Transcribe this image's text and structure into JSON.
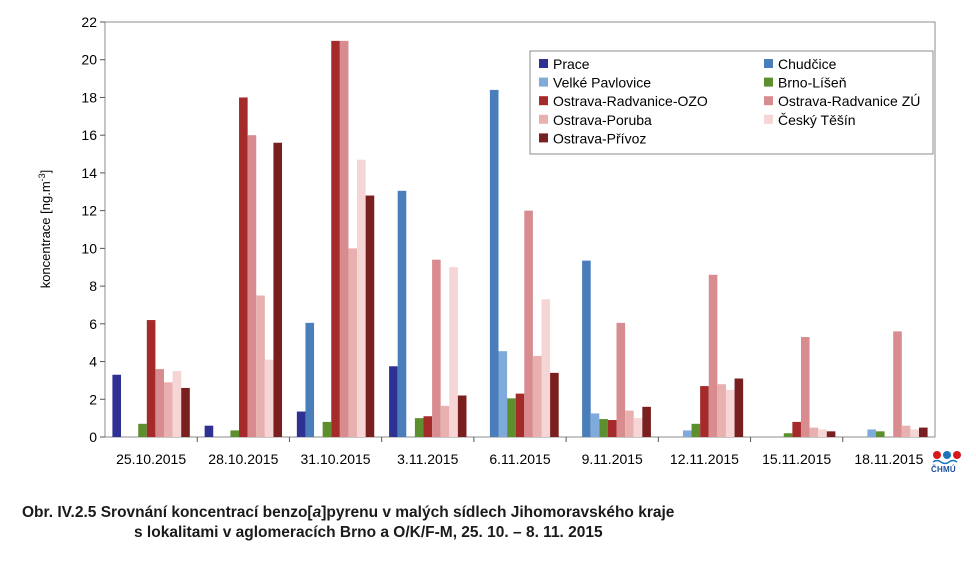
{
  "chart_data": {
    "type": "bar",
    "ylabel": "koncentrace [ng.m",
    "ylabel_sup": "-3",
    "ylabel_end": "]",
    "ylim": [
      0,
      22
    ],
    "yticks": [
      "0",
      "2",
      "4",
      "6",
      "8",
      "10",
      "12",
      "14",
      "16",
      "18",
      "20",
      "22"
    ],
    "grid": false,
    "legend_position": "top-right",
    "categories": [
      "25.10.2015",
      "28.10.2015",
      "31.10.2015",
      "3.11.2015",
      "6.11.2015",
      "9.11.2015",
      "12.11.2015",
      "15.11.2015",
      "18.11.2015"
    ],
    "series": [
      {
        "name": "Prace",
        "color": "#2e3192",
        "values": [
          3.3,
          0.6,
          1.35,
          3.75,
          0,
          0,
          0,
          0,
          0
        ]
      },
      {
        "name": "Chudčice",
        "color": "#4a7ebb",
        "values": [
          0,
          0,
          6.05,
          13.05,
          18.4,
          9.35,
          0,
          0,
          0
        ]
      },
      {
        "name": "Velké Pavlovice",
        "color": "#7eaadc",
        "values": [
          0,
          0,
          0,
          0,
          4.55,
          1.25,
          0.35,
          0,
          0.4
        ]
      },
      {
        "name": "Brno-Líšeň",
        "color": "#5e8f2f",
        "values": [
          0.7,
          0.35,
          0.8,
          1.0,
          2.05,
          0.95,
          0.7,
          0.2,
          0.3
        ]
      },
      {
        "name": "Ostrava-Radvanice-OZO",
        "color": "#a52a2a",
        "values": [
          6.2,
          18.0,
          21.0,
          1.1,
          2.3,
          0.9,
          2.7,
          0.8,
          0
        ]
      },
      {
        "name": "Ostrava-Radvanice ZÚ",
        "color": "#d98c8f",
        "values": [
          3.6,
          16.0,
          21.0,
          9.4,
          12.0,
          6.05,
          8.6,
          5.3,
          5.6
        ]
      },
      {
        "name": "Ostrava-Poruba",
        "color": "#e9b0b0",
        "values": [
          2.9,
          7.5,
          10.0,
          1.65,
          4.3,
          1.4,
          2.8,
          0.5,
          0.6
        ]
      },
      {
        "name": "Český Těšín",
        "color": "#f5d5d5",
        "values": [
          3.5,
          4.1,
          14.7,
          9.0,
          7.3,
          1.0,
          2.5,
          0.4,
          0.4
        ]
      },
      {
        "name": "Ostrava-Přívoz",
        "color": "#7a1f1f",
        "values": [
          2.6,
          15.6,
          12.8,
          2.2,
          3.4,
          1.6,
          3.1,
          0.3,
          0.5
        ]
      }
    ]
  },
  "logo": {
    "text": "ČHMÚ",
    "colors": [
      "#d7191c",
      "#1b75bc"
    ]
  },
  "caption": {
    "line1_a": "Obr. IV.2.5  Srovnání koncentrací benzo[",
    "line1_b": "a",
    "line1_c": "]pyrenu v malých sídlech Jihomoravského kraje",
    "line2": "s lokalitami v aglomeracích Brno a O/K/F-M, 25. 10. – 8. 11. 2015"
  }
}
